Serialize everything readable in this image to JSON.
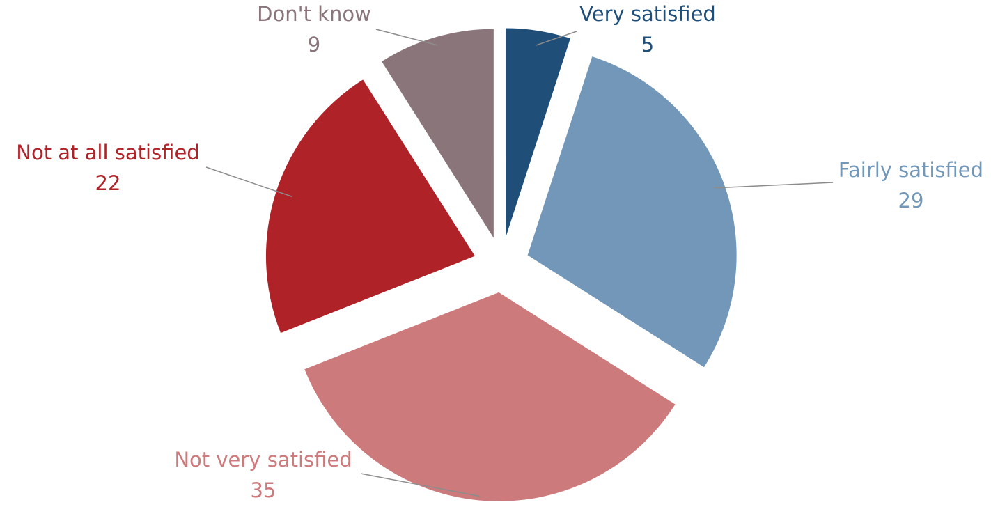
{
  "chart_data": {
    "type": "pie",
    "title": "",
    "start_angle_deg": 0,
    "direction": "clockwise",
    "exploded": true,
    "slices": [
      {
        "label": "Very satisfied",
        "value": 5,
        "color": "#1f4e79",
        "label_color": "#1f4e79"
      },
      {
        "label": "Fairly satisfied",
        "value": 29,
        "color": "#7397b8",
        "label_color": "#7397b8"
      },
      {
        "label": "Not very satisfied",
        "value": 35,
        "color": "#cd7a7c",
        "label_color": "#cd7a7c"
      },
      {
        "label": "Not at all satisfied",
        "value": 22,
        "color": "#ae2228",
        "label_color": "#ae2228"
      },
      {
        "label": "Don't know",
        "value": 9,
        "color": "#8a757a",
        "label_color": "#8a757a"
      }
    ]
  }
}
